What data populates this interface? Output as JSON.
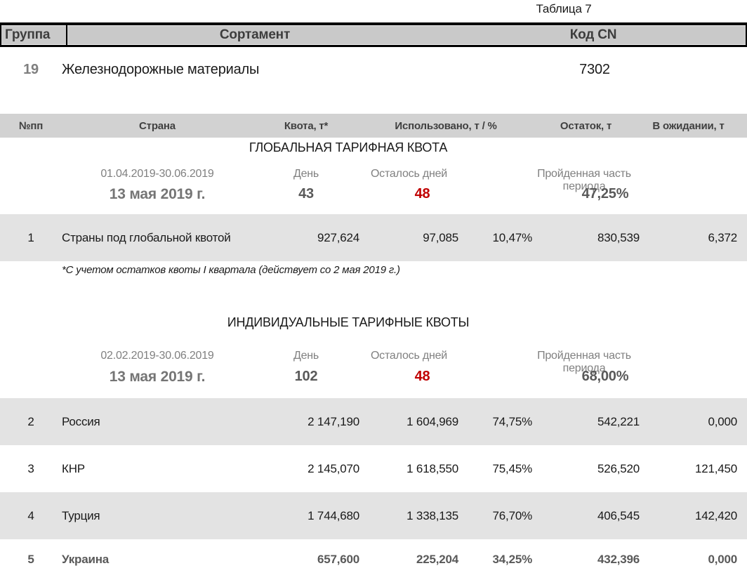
{
  "page": {
    "caption": "Таблица 7"
  },
  "colors": {
    "accent_red": "#c00000",
    "muted_gray": "#808080",
    "group_header_bg": "#c9c9c9",
    "quota_header_bg": "#d2d2d2",
    "row_stripe_bg": "#e3e3e3",
    "emphasis_text": "#595959"
  },
  "group_table": {
    "headers": {
      "group": "Группа",
      "sortament": "Сортамент",
      "cn_code": "Код CN"
    },
    "row": {
      "group": "19",
      "sortament": "Железнодорожные материалы",
      "cn_code": "7302"
    }
  },
  "quota_table": {
    "headers": {
      "num": "№пп",
      "country": "Страна",
      "quota": "Квота, т*",
      "used": "Использовано, т / %",
      "remainder": "Остаток, т",
      "pending": "В ожидании, т"
    },
    "sections": [
      {
        "title": "ГЛОБАЛЬНАЯ ТАРИФНАЯ КВОТА",
        "period": "01.04.2019-30.06.2019",
        "day_label": "День",
        "days_left_label": "Осталось дней",
        "elapsed_label": "Пройденная часть периода",
        "current_date": "13 мая 2019 г.",
        "day": "43",
        "days_left": "48",
        "elapsed_pct": "47,25%",
        "rows": [
          {
            "num": "1",
            "country": "Страны под глобальной квотой",
            "quota": "927,624",
            "used_t": "97,085",
            "used_pct": "10,47%",
            "remainder": "830,539",
            "pending": "6,372"
          }
        ],
        "footnote": "*С учетом остатков квоты I квартала (действует со 2 мая 2019 г.)"
      },
      {
        "title": "ИНДИВИДУАЛЬНЫЕ ТАРИФНЫЕ КВОТЫ",
        "period": "02.02.2019-30.06.2019",
        "day_label": "День",
        "days_left_label": "Осталось дней",
        "elapsed_label": "Пройденная часть периода",
        "current_date": "13 мая 2019 г.",
        "day": "102",
        "days_left": "48",
        "elapsed_pct": "68,00%",
        "rows": [
          {
            "num": "2",
            "country": "Россия",
            "quota": "2 147,190",
            "used_t": "1 604,969",
            "used_pct": "74,75%",
            "remainder": "542,221",
            "pending": "0,000"
          },
          {
            "num": "3",
            "country": "КНР",
            "quota": "2 145,070",
            "used_t": "1 618,550",
            "used_pct": "75,45%",
            "remainder": "526,520",
            "pending": "121,450"
          },
          {
            "num": "4",
            "country": "Турция",
            "quota": "1 744,680",
            "used_t": "1 338,135",
            "used_pct": "76,70%",
            "remainder": "406,545",
            "pending": "142,420"
          },
          {
            "num": "5",
            "country": "Украина",
            "quota": "657,600",
            "used_t": "225,204",
            "used_pct": "34,25%",
            "remainder": "432,396",
            "pending": "0,000"
          }
        ]
      }
    ]
  }
}
